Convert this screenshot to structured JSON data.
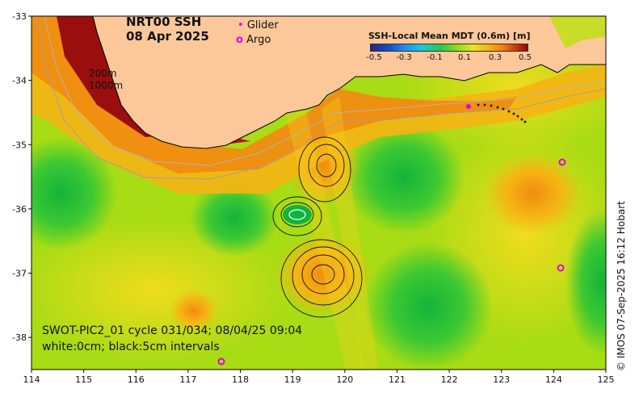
{
  "header": {
    "product": "NRT00 SSH",
    "date": "08 Apr 2025"
  },
  "legend": {
    "glider_symbol": "•",
    "glider_label": "Glider",
    "argo_symbol": "o",
    "argo_label": "Argo",
    "glider_color": "#e000e0",
    "argo_color": "#e000e0"
  },
  "depth_labels": [
    "200m",
    "1000m"
  ],
  "colorbar": {
    "title": "SSH-Local Mean MDT (0.6m) [m]",
    "ticks": [
      "-0.5",
      "-0.3",
      "-0.1",
      "0.1",
      "0.3",
      "0.5"
    ],
    "range": [
      -0.5,
      0.5
    ]
  },
  "overlay_info": {
    "line1": "SWOT-PIC2_01 cycle 031/034; 08/04/25 09:04",
    "line2": "white:0cm; black:5cm intervals"
  },
  "credit": "© IMOS 07-Sep-2025 16:12 Hobart",
  "axes": {
    "x_ticks": [
      "114",
      "115",
      "116",
      "117",
      "118",
      "119",
      "120",
      "121",
      "122",
      "123",
      "124",
      "125"
    ],
    "y_ticks": [
      "-33",
      "-34",
      "-35",
      "-36",
      "-37",
      "-38"
    ],
    "x_range": [
      114,
      125
    ],
    "y_range": [
      -38.5,
      -33
    ]
  },
  "colors": {
    "land": "#fcc89a",
    "ocean_base": "#a8dc14",
    "high": "#f08c10",
    "very_high": "#a01010",
    "low": "#1ec83c",
    "coast": "#000000"
  }
}
